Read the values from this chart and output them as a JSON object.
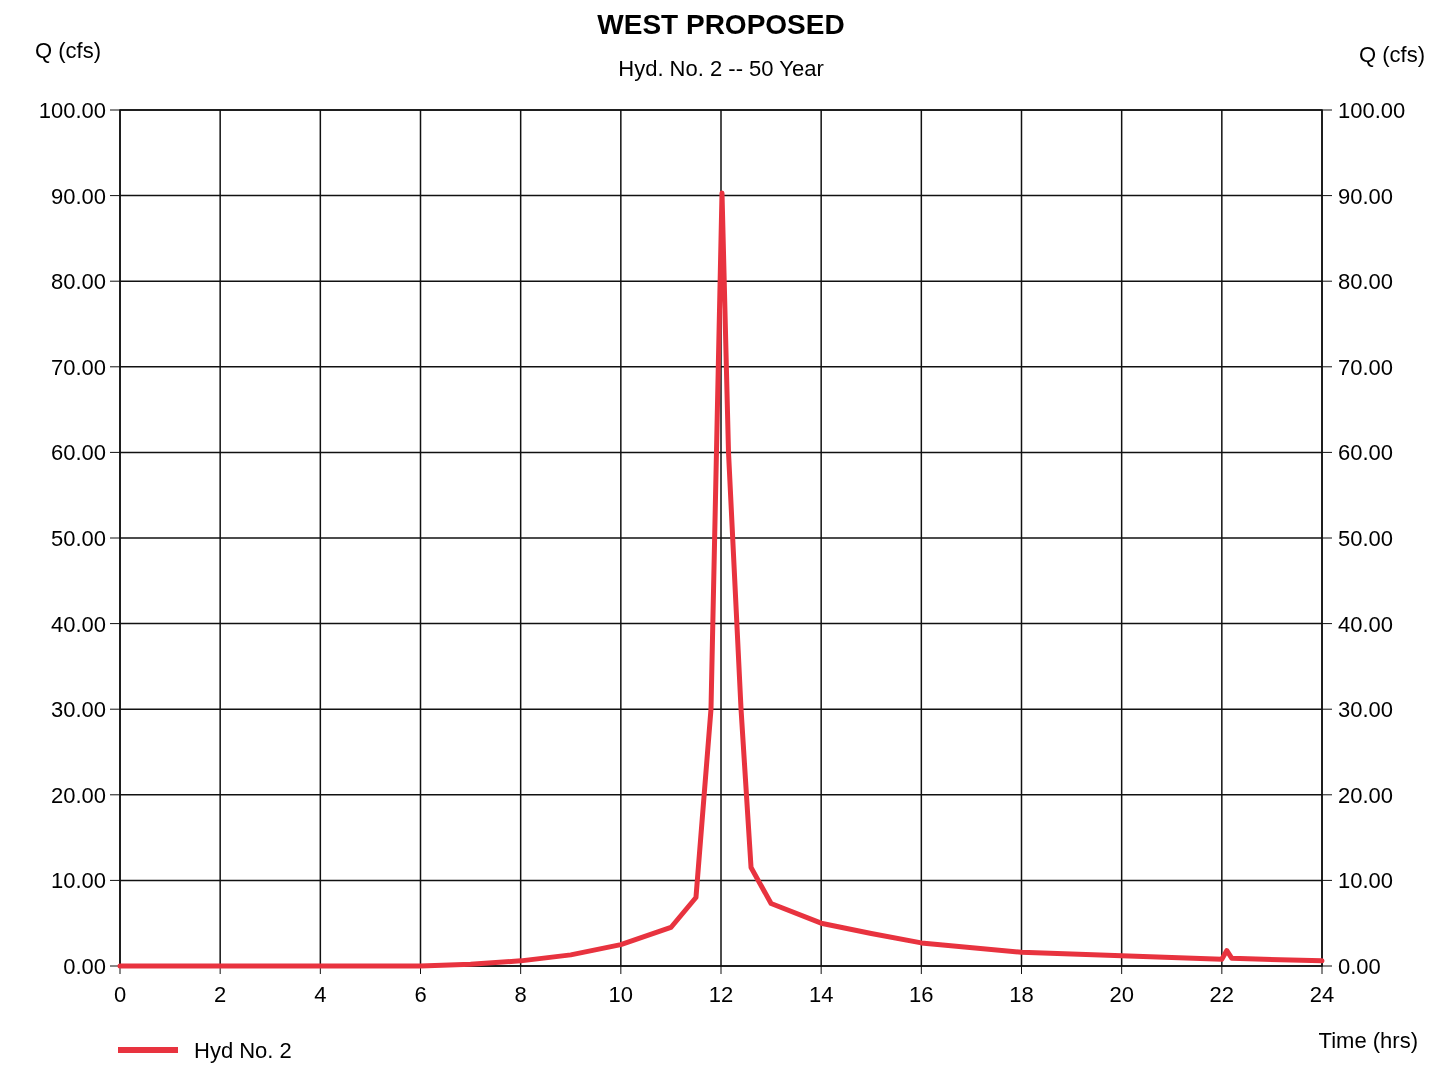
{
  "chart_data": {
    "type": "line",
    "title": "WEST PROPOSED",
    "subtitle": "Hyd. No. 2 -- 50 Year",
    "xlabel": "Time (hrs)",
    "ylabel": "Q (cfs)",
    "y2label": "Q (cfs)",
    "x": [
      0,
      6,
      7,
      8,
      9,
      10,
      11,
      11.5,
      11.8,
      12.02,
      12.15,
      12.4,
      12.6,
      13,
      14,
      15,
      16,
      18,
      20,
      22,
      22.1,
      22.2,
      24
    ],
    "series": [
      {
        "name": "Hyd No. 2",
        "color": "#e8333f",
        "values": [
          0,
          0,
          0.2,
          0.6,
          1.3,
          2.5,
          4.5,
          8,
          30,
          90.3,
          60,
          30,
          11.5,
          7.3,
          5,
          3.8,
          2.7,
          1.6,
          1.2,
          0.8,
          1.8,
          0.9,
          0.6
        ]
      }
    ],
    "xlim": [
      0,
      24
    ],
    "xticks": [
      0,
      2,
      4,
      6,
      8,
      10,
      12,
      14,
      16,
      18,
      20,
      22,
      24
    ],
    "ylim": [
      0,
      100
    ],
    "yticks": [
      {
        "value": 0,
        "label": "0.00"
      },
      {
        "value": 10,
        "label": "10.00"
      },
      {
        "value": 20,
        "label": "20.00"
      },
      {
        "value": 30,
        "label": "30.00"
      },
      {
        "value": 40,
        "label": "40.00"
      },
      {
        "value": 50,
        "label": "50.00"
      },
      {
        "value": 60,
        "label": "60.00"
      },
      {
        "value": 70,
        "label": "70.00"
      },
      {
        "value": 80,
        "label": "80.00"
      },
      {
        "value": 90,
        "label": "90.00"
      },
      {
        "value": 100,
        "label": "100.00"
      }
    ],
    "y2lim": [
      0,
      100
    ],
    "y2ticks": [
      {
        "value": 0,
        "label": "0.00"
      },
      {
        "value": 10,
        "label": "10.00"
      },
      {
        "value": 20,
        "label": "20.00"
      },
      {
        "value": 30,
        "label": "30.00"
      },
      {
        "value": 40,
        "label": "40.00"
      },
      {
        "value": 50,
        "label": "50.00"
      },
      {
        "value": 60,
        "label": "60.00"
      },
      {
        "value": 70,
        "label": "70.00"
      },
      {
        "value": 80,
        "label": "80.00"
      },
      {
        "value": 90,
        "label": "90.00"
      },
      {
        "value": 100,
        "label": "100.00"
      }
    ],
    "grid": true,
    "legend": "bottom left",
    "marker": "none",
    "line_style": "solid"
  }
}
